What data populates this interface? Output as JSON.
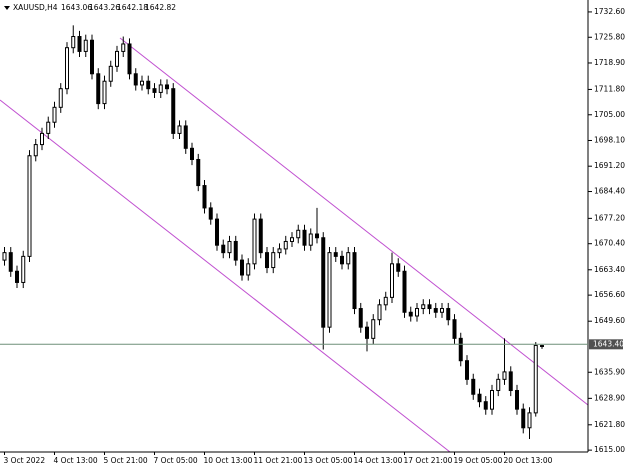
{
  "chart_data": {
    "type": "candlestick",
    "title": "XAUUSD,H4",
    "categories": [
      "3 Oct 2022",
      null,
      null,
      null,
      null,
      null,
      null,
      null,
      "4 Oct 13:00",
      null,
      null,
      null,
      null,
      null,
      null,
      null,
      "5 Oct 21:00",
      null,
      null,
      null,
      null,
      null,
      null,
      null,
      "7 Oct 05:00",
      null,
      null,
      null,
      null,
      null,
      null,
      null,
      "10 Oct 13:00",
      null,
      null,
      null,
      null,
      null,
      null,
      null,
      "11 Oct 21:00",
      null,
      null,
      null,
      null,
      null,
      null,
      null,
      "13 Oct 05:00",
      null,
      null,
      null,
      null,
      null,
      null,
      null,
      "14 Oct 13:00",
      null,
      null,
      null,
      null,
      null,
      null,
      null,
      "17 Oct 21:00",
      null,
      null,
      null,
      null,
      null,
      null,
      null,
      "19 Oct 05:00",
      null,
      null,
      null,
      null,
      null,
      null,
      null,
      "20 Oct 13:00",
      null,
      null,
      null,
      null,
      null,
      null
    ],
    "open": [
      1666,
      1668,
      1663,
      1660,
      1667,
      1694,
      1697,
      1700,
      1703,
      1707,
      1712,
      1723,
      1726,
      1722,
      1725,
      1716,
      1708,
      1714,
      1718,
      1722,
      1724,
      1716,
      1713,
      1714,
      1712,
      1711,
      1713,
      1712,
      1700,
      1702,
      1696,
      1693,
      1686,
      1680,
      1677,
      1670,
      1668,
      1671,
      1666,
      1662,
      1665,
      1677,
      1668,
      1664,
      1668,
      1669,
      1671,
      1672,
      1674,
      1670,
      1673,
      1672,
      1648,
      1668,
      1667,
      1665,
      1668,
      1653,
      1648,
      1645,
      1650,
      1654,
      1656,
      1665,
      1663,
      1652,
      1651,
      1653,
      1654,
      1653,
      1652,
      1653,
      1650,
      1645,
      1639,
      1634,
      1630,
      1628,
      1626,
      1631,
      1634,
      1636,
      1631,
      1626,
      1621,
      1625,
      1643.06
    ],
    "high": [
      1669.5,
      1669.5,
      1664.5,
      1668.5,
      1695.5,
      1698.5,
      1701.5,
      1704.5,
      1708.5,
      1713.5,
      1724.5,
      1729,
      1727.5,
      1726.5,
      1726.5,
      1717.5,
      1715.5,
      1719.5,
      1723.5,
      1726,
      1725.5,
      1717.5,
      1715.5,
      1715.5,
      1713.5,
      1714.5,
      1714.5,
      1713.5,
      1703.5,
      1703.5,
      1697.5,
      1694.5,
      1687.5,
      1681.5,
      1678.5,
      1671.5,
      1672.5,
      1672.5,
      1667.5,
      1666.5,
      1678.5,
      1678.5,
      1669.5,
      1669.5,
      1670.5,
      1672.5,
      1673.5,
      1675.5,
      1675.5,
      1674.5,
      1680,
      1673.5,
      1669.5,
      1669.5,
      1668.5,
      1669.5,
      1669.5,
      1654.5,
      1649.5,
      1651.5,
      1655.5,
      1657.5,
      1668,
      1666.5,
      1664.5,
      1653.5,
      1654.5,
      1655.5,
      1655.5,
      1654.5,
      1654.5,
      1654.5,
      1651.5,
      1646.5,
      1640.5,
      1635.5,
      1631.5,
      1629.5,
      1632.5,
      1635.5,
      1645,
      1637.5,
      1632.5,
      1627.5,
      1626.5,
      1644,
      1643.26
    ],
    "low": [
      1664.5,
      1661.5,
      1658.5,
      1658.5,
      1665.5,
      1692.5,
      1695.5,
      1698.5,
      1701.5,
      1705.5,
      1710.5,
      1721.5,
      1720.5,
      1720.5,
      1714.5,
      1706.5,
      1706.5,
      1712.5,
      1716.5,
      1720.5,
      1714.5,
      1711.5,
      1711.5,
      1710.5,
      1709.5,
      1709.5,
      1710.5,
      1698.5,
      1698.5,
      1694.5,
      1691.5,
      1684.5,
      1678.5,
      1675.5,
      1668.5,
      1666.5,
      1666.5,
      1664.5,
      1660.5,
      1660.5,
      1663.5,
      1666.5,
      1662.5,
      1662.5,
      1666.5,
      1667.5,
      1669.5,
      1670.5,
      1668.5,
      1668.5,
      1670.5,
      1642,
      1646.5,
      1665.5,
      1663.5,
      1663.5,
      1651.5,
      1646.5,
      1641.5,
      1643.5,
      1648.5,
      1652.5,
      1654.5,
      1661.5,
      1650.5,
      1649.5,
      1649.5,
      1651.5,
      1651.5,
      1650.5,
      1650.5,
      1648.5,
      1643.5,
      1637.5,
      1632.5,
      1628.5,
      1626.5,
      1624.5,
      1624.5,
      1629.5,
      1632.5,
      1629.5,
      1624.5,
      1619.5,
      1618,
      1624,
      1642.18
    ],
    "close": [
      1668,
      1663,
      1660,
      1667,
      1694,
      1697,
      1700,
      1703,
      1707,
      1712,
      1723,
      1726,
      1722,
      1725,
      1716,
      1708,
      1714,
      1718,
      1722,
      1724,
      1716,
      1713,
      1714,
      1712,
      1711,
      1713,
      1712,
      1700,
      1702,
      1696,
      1693,
      1686,
      1680,
      1677,
      1670,
      1668,
      1671,
      1666,
      1662,
      1665,
      1677,
      1668,
      1664,
      1668,
      1669,
      1671,
      1672,
      1674,
      1670,
      1673,
      1672,
      1648,
      1668,
      1667,
      1665,
      1668,
      1653,
      1648,
      1645,
      1650,
      1654,
      1656,
      1665,
      1663,
      1652,
      1651,
      1653,
      1654,
      1653,
      1652,
      1653,
      1650,
      1645,
      1639,
      1634,
      1630,
      1628,
      1626,
      1631,
      1634,
      1636,
      1631,
      1626,
      1621,
      1625,
      1643.1,
      1642.82
    ],
    "ylim": [
      1614.5,
      1735.8
    ],
    "yticks": [
      {
        "value": 1732.6,
        "label": "1732.60"
      },
      {
        "value": 1725.8,
        "label": "1725.80"
      },
      {
        "value": 1718.9,
        "label": "1718.90"
      },
      {
        "value": 1711.8,
        "label": "1711.80"
      },
      {
        "value": 1705,
        "label": "1705.00"
      },
      {
        "value": 1698.1,
        "label": "1698.10"
      },
      {
        "value": 1691.2,
        "label": "1691.20"
      },
      {
        "value": 1684.4,
        "label": "1684.40"
      },
      {
        "value": 1677.2,
        "label": "1677.20"
      },
      {
        "value": 1670.4,
        "label": "1670.40"
      },
      {
        "value": 1663.4,
        "label": "1663.40"
      },
      {
        "value": 1656.6,
        "label": "1656.60"
      },
      {
        "value": 1649.6,
        "label": "1649.60"
      },
      {
        "value": 1635.9,
        "label": "1635.90"
      },
      {
        "value": 1628.9,
        "label": "1628.90"
      },
      {
        "value": 1621.8,
        "label": "1621.80"
      },
      {
        "value": 1615,
        "label": "1615.00"
      }
    ],
    "current_price": {
      "value": 1643.4,
      "label": "1643.40"
    }
  }
}
